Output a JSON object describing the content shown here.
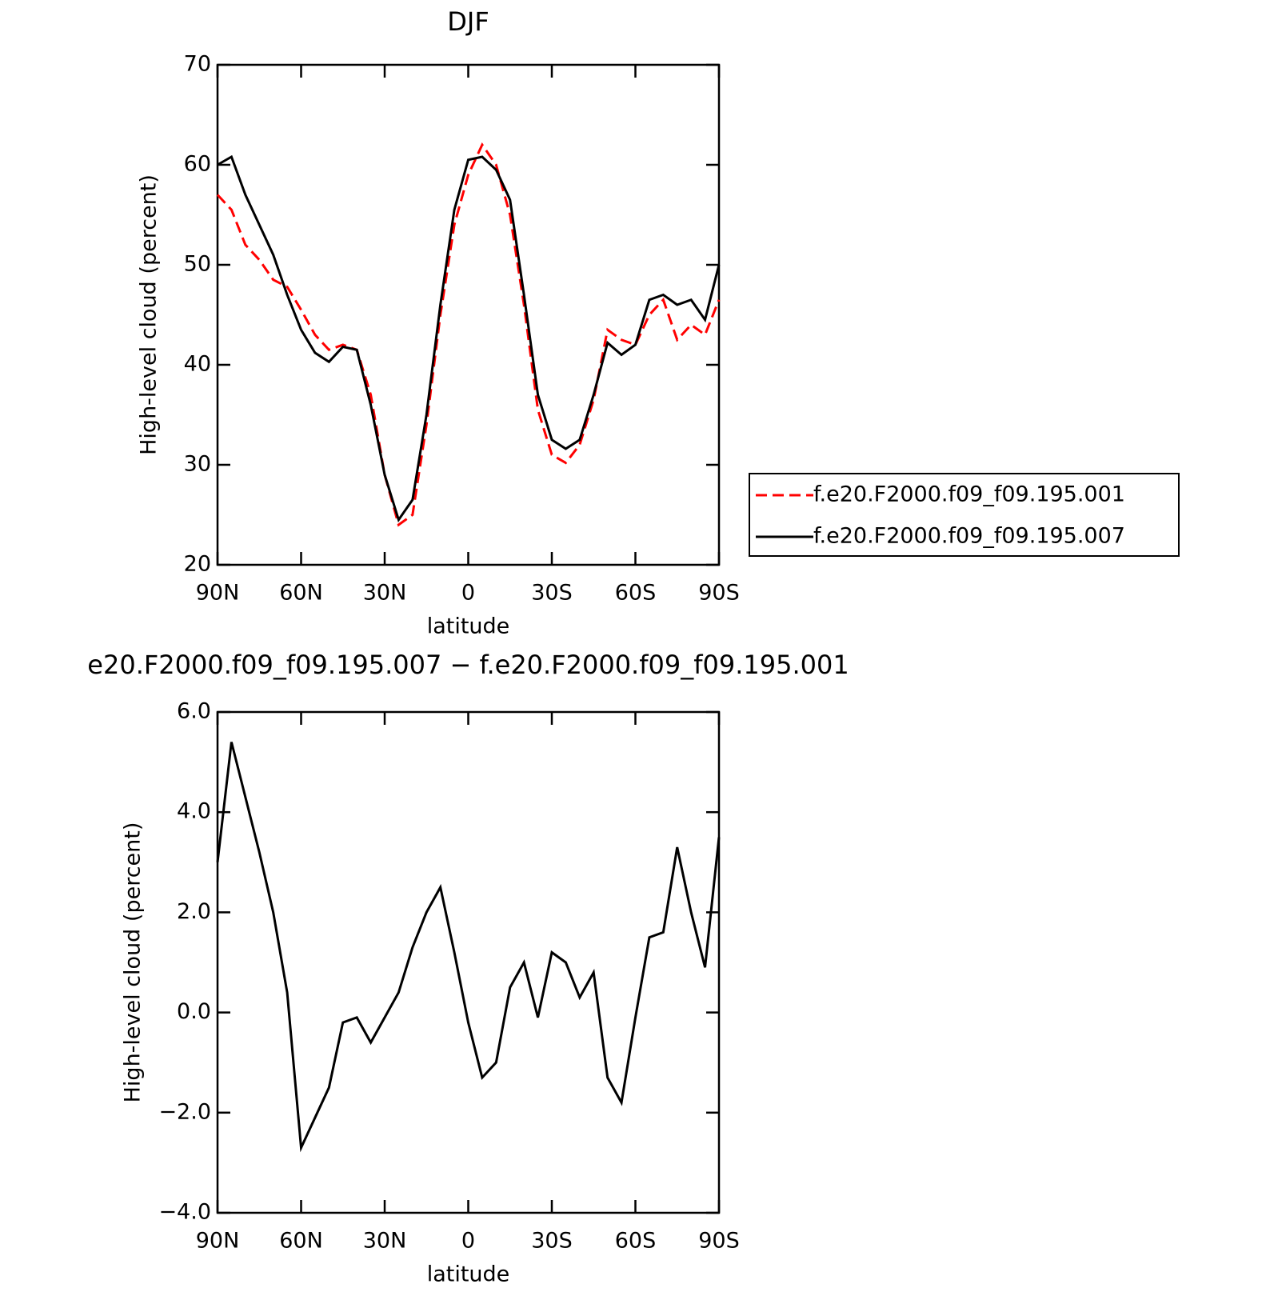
{
  "chart_data": [
    {
      "type": "line",
      "title": "DJF",
      "xlabel": "latitude",
      "ylabel": "High-level cloud (percent)",
      "x": [
        90,
        85,
        80,
        75,
        70,
        65,
        60,
        55,
        50,
        45,
        40,
        35,
        30,
        25,
        20,
        15,
        10,
        5,
        0,
        -5,
        -10,
        -15,
        -20,
        -25,
        -30,
        -35,
        -40,
        -45,
        -50,
        -55,
        -60,
        -65,
        -70,
        -75,
        -80,
        -85,
        -90
      ],
      "xlim": [
        90,
        -90
      ],
      "xticks": [
        {
          "value": 90,
          "label": "90N"
        },
        {
          "value": 60,
          "label": "60N"
        },
        {
          "value": 30,
          "label": "30N"
        },
        0,
        {
          "value": -30,
          "label": "30S"
        },
        {
          "value": -60,
          "label": "60S"
        },
        {
          "value": -90,
          "label": "90S"
        }
      ],
      "ylim": [
        20,
        70
      ],
      "yticks": [
        20,
        30,
        40,
        50,
        60,
        70
      ],
      "legend": "right",
      "series": [
        {
          "name": "f.e20.F2000.f09_f09.195.001",
          "color": "#ff0000",
          "line_style": "dashed",
          "values": [
            57,
            55.5,
            52,
            50.5,
            48.5,
            47.8,
            45.5,
            43,
            41.5,
            42,
            41.5,
            37,
            29,
            24,
            25,
            34,
            45,
            54,
            59,
            62,
            60,
            55,
            46,
            35.5,
            31,
            30.2,
            32,
            36.5,
            43.5,
            42.5,
            42,
            45,
            46.5,
            42.5,
            44,
            43,
            46.5
          ]
        },
        {
          "name": "f.e20.F2000.f09_f09.195.007",
          "color": "#000000",
          "line_style": "solid",
          "values": [
            60,
            60.8,
            57,
            54,
            51,
            47,
            43.5,
            41.2,
            40.3,
            41.8,
            41.5,
            36,
            29,
            24.5,
            26.5,
            35,
            46,
            55.5,
            60.5,
            60.8,
            59.5,
            56.5,
            47,
            37,
            32.5,
            31.6,
            32.5,
            37,
            42.2,
            41,
            42,
            46.5,
            47,
            46,
            46.5,
            44.5,
            50
          ]
        }
      ]
    },
    {
      "type": "line",
      "title": "e20.F2000.f09_f09.195.007 − f.e20.F2000.f09_f09.195.001",
      "xlabel": "latitude",
      "ylabel": "High-level cloud (percent)",
      "x": [
        90,
        85,
        80,
        75,
        70,
        65,
        60,
        55,
        50,
        45,
        40,
        35,
        30,
        25,
        20,
        15,
        10,
        5,
        0,
        -5,
        -10,
        -15,
        -20,
        -25,
        -30,
        -35,
        -40,
        -45,
        -50,
        -55,
        -60,
        -65,
        -70,
        -75,
        -80,
        -85,
        -90
      ],
      "xlim": [
        90,
        -90
      ],
      "xticks": [
        {
          "value": 90,
          "label": "90N"
        },
        {
          "value": 60,
          "label": "60N"
        },
        {
          "value": 30,
          "label": "30N"
        },
        0,
        {
          "value": -30,
          "label": "30S"
        },
        {
          "value": -60,
          "label": "60S"
        },
        {
          "value": -90,
          "label": "90S"
        }
      ],
      "ylim": [
        -4,
        6
      ],
      "yticks": [
        {
          "value": -4,
          "label": "−4.0"
        },
        {
          "value": -2,
          "label": "−2.0"
        },
        {
          "value": 0,
          "label": "0.0"
        },
        {
          "value": 2,
          "label": "2.0"
        },
        {
          "value": 4,
          "label": "4.0"
        },
        {
          "value": 6,
          "label": "6.0"
        }
      ],
      "series": [
        {
          "color": "#000000",
          "line_style": "solid",
          "values": [
            3.0,
            5.4,
            4.3,
            3.2,
            2.0,
            0.4,
            -2.7,
            -2.1,
            -1.5,
            -0.2,
            -0.1,
            -0.6,
            -0.1,
            0.4,
            1.3,
            2.0,
            2.5,
            1.2,
            -0.2,
            -1.3,
            -1.0,
            0.5,
            1.0,
            -0.1,
            1.2,
            1.0,
            0.3,
            0.8,
            -1.3,
            -1.8,
            -0.1,
            1.5,
            1.6,
            3.3,
            2.0,
            0.9,
            3.5
          ]
        }
      ]
    }
  ]
}
